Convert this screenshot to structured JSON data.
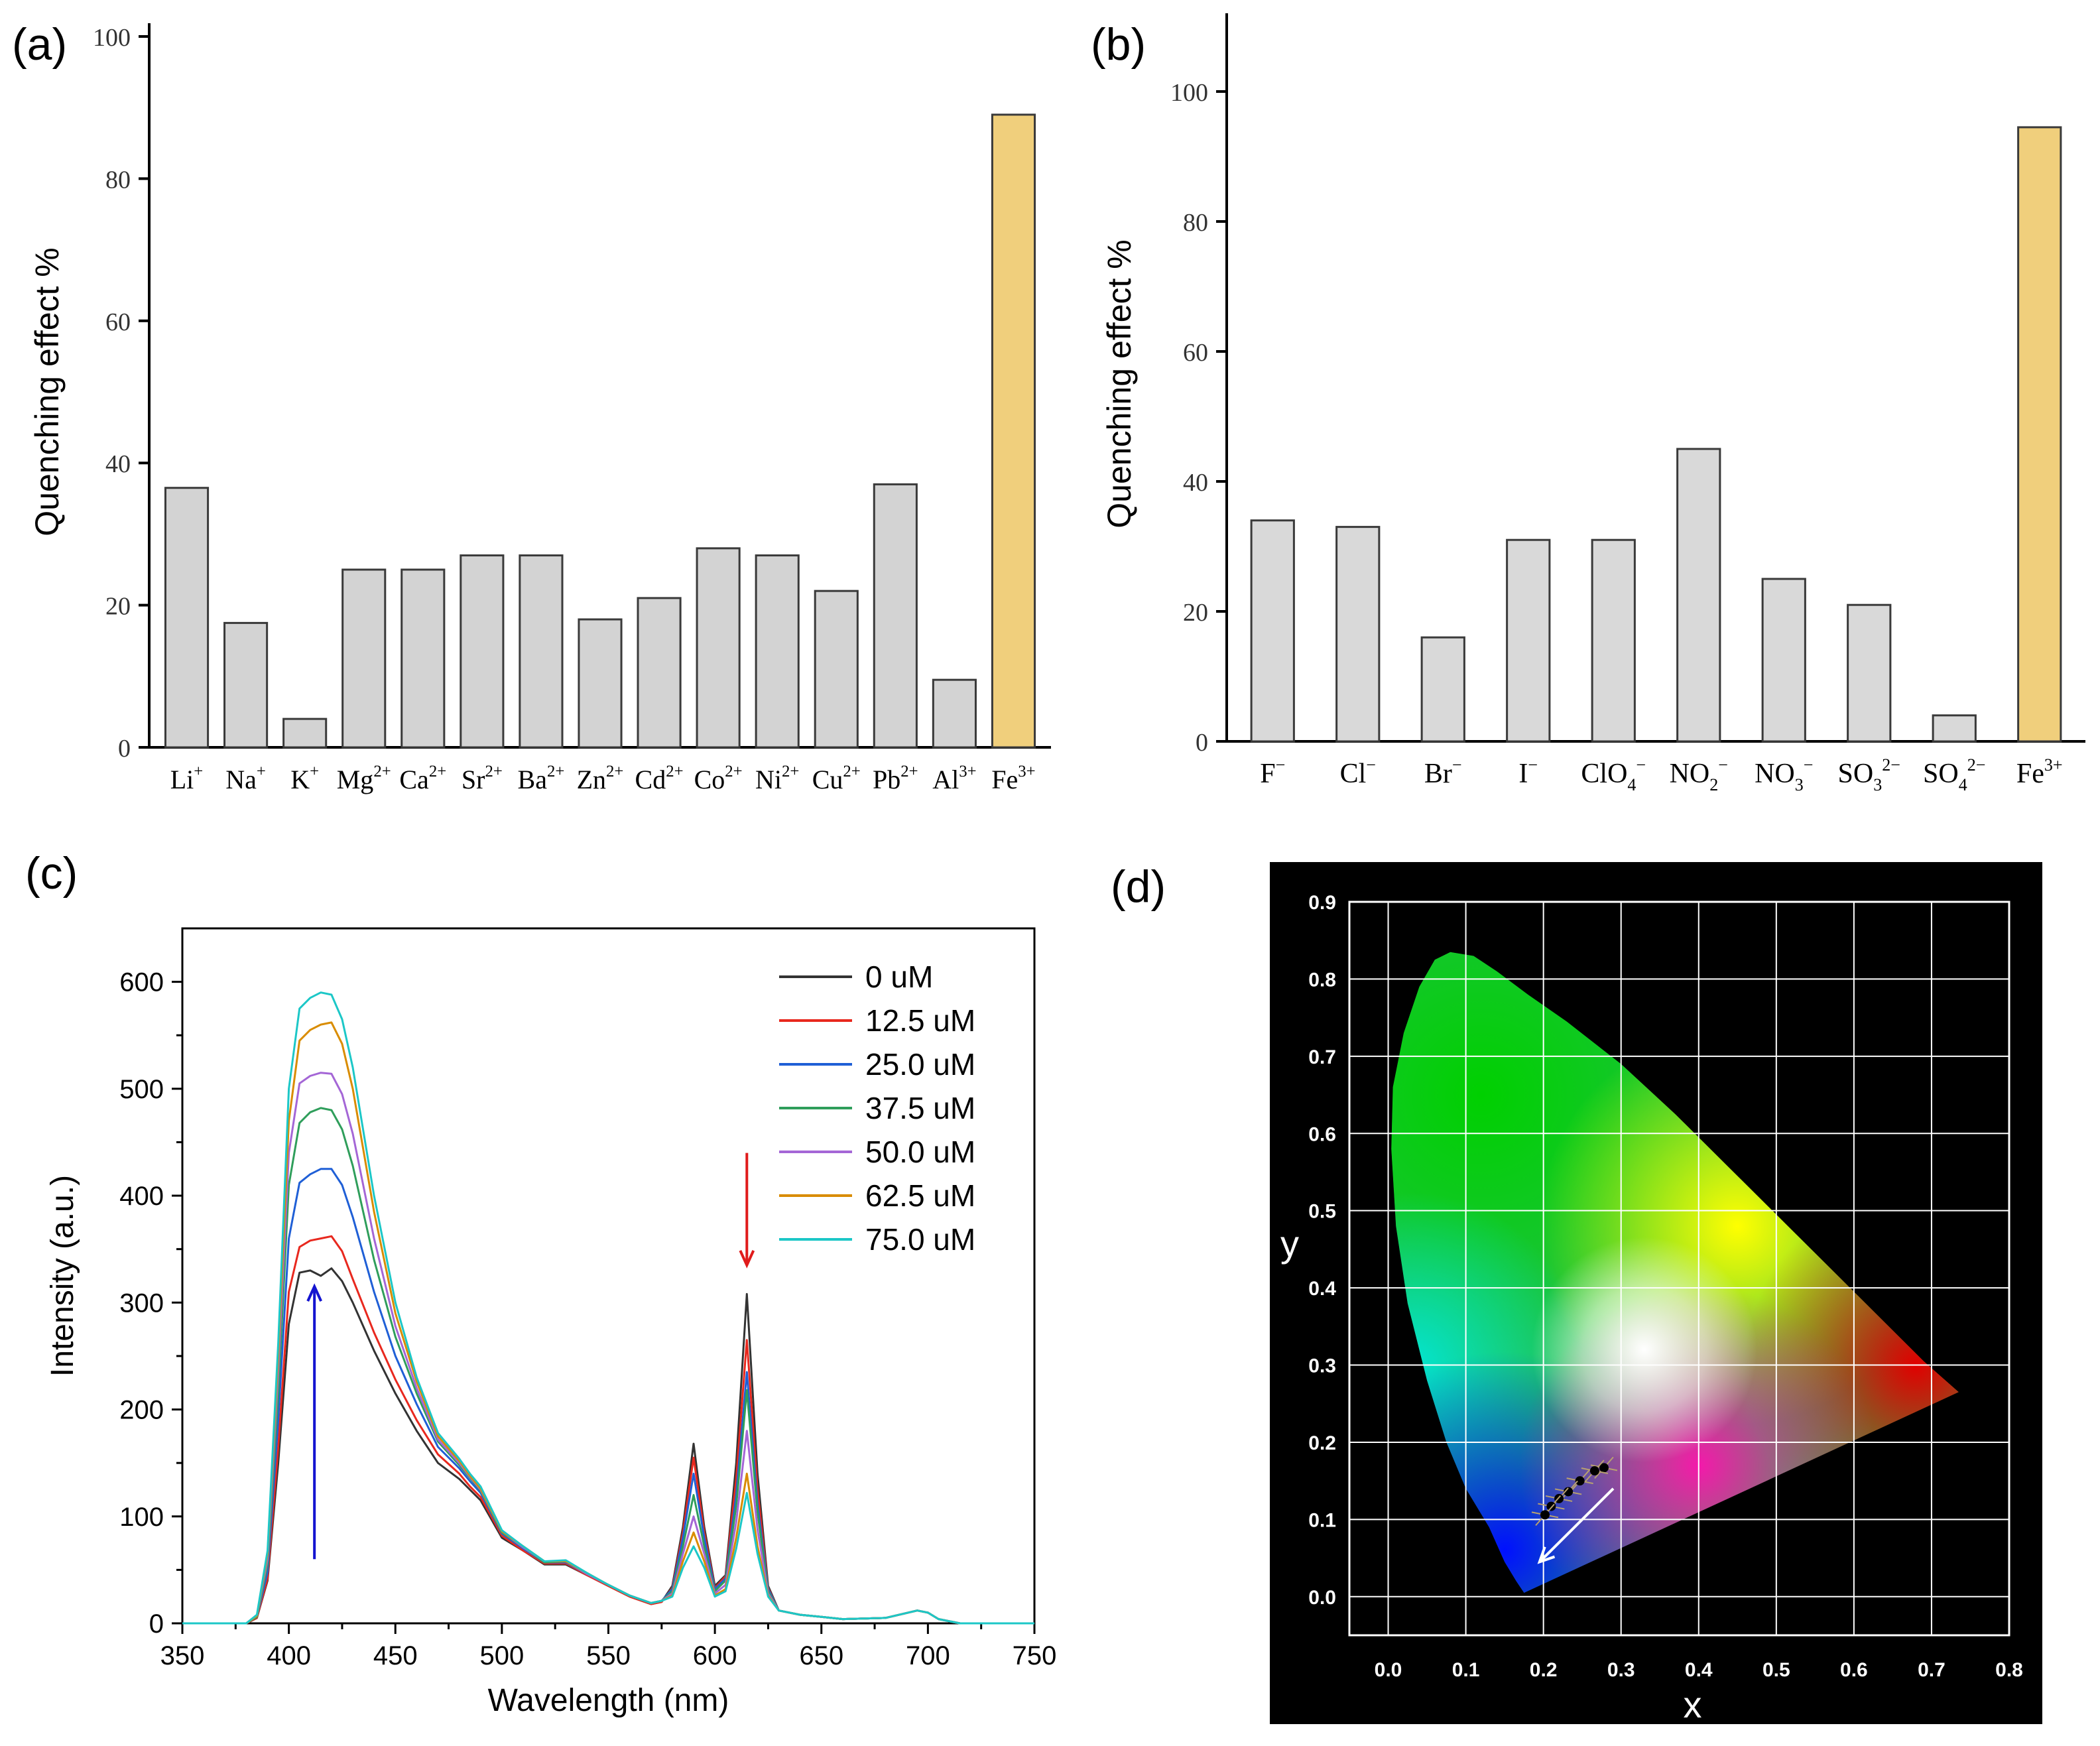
{
  "chart_data": [
    {
      "panel": "(a)",
      "type": "bar",
      "ylabel": "Quenching effect %",
      "xlabel": "",
      "ylim": [
        0,
        100
      ],
      "yticks": [
        0,
        20,
        40,
        60,
        80,
        100
      ],
      "categories": [
        {
          "base": "Li",
          "sup": "+"
        },
        {
          "base": "Na",
          "sup": "+"
        },
        {
          "base": "K",
          "sup": "+"
        },
        {
          "base": "Mg",
          "sup": "2+"
        },
        {
          "base": "Ca",
          "sup": "2+"
        },
        {
          "base": "Sr",
          "sup": "2+"
        },
        {
          "base": "Ba",
          "sup": "2+"
        },
        {
          "base": "Zn",
          "sup": "2+"
        },
        {
          "base": "Cd",
          "sup": "2+"
        },
        {
          "base": "Co",
          "sup": "2+"
        },
        {
          "base": "Ni",
          "sup": "2+"
        },
        {
          "base": "Cu",
          "sup": "2+"
        },
        {
          "base": "Pb",
          "sup": "2+"
        },
        {
          "base": "Al",
          "sup": "3+"
        },
        {
          "base": "Fe",
          "sup": "3+"
        }
      ],
      "values": [
        36.5,
        17.5,
        4,
        25,
        25,
        27,
        27,
        18,
        21,
        28,
        27,
        22,
        37,
        9.5,
        89
      ],
      "colors": {
        "default": "#d3d3d3",
        "highlight": "#f0cf7c",
        "stroke": "#3a3a3a"
      },
      "highlight_index": 14
    },
    {
      "panel": "(b)",
      "type": "bar",
      "ylabel": "Quenching effect %",
      "xlabel": "",
      "ylim": [
        0,
        110
      ],
      "yticks": [
        0,
        20,
        40,
        60,
        80,
        100
      ],
      "categories": [
        {
          "base": "F",
          "sup": "−"
        },
        {
          "base": "Cl",
          "sup": "−"
        },
        {
          "base": "Br",
          "sup": "−"
        },
        {
          "base": "I",
          "sup": "−"
        },
        {
          "base": "ClO",
          "sub": "4",
          "sup": "−"
        },
        {
          "base": "NO",
          "sub": "2",
          "sup": "−"
        },
        {
          "base": "NO",
          "sub": "3",
          "sup": "−"
        },
        {
          "base": "SO",
          "sub": "3",
          "sup": "2−"
        },
        {
          "base": "SO",
          "sub": "4",
          "sup": "2−"
        },
        {
          "base": "Fe",
          "sup": "3+"
        }
      ],
      "values": [
        34,
        33,
        16,
        31,
        31,
        45,
        25,
        21,
        4,
        94.5
      ],
      "colors": {
        "default": "#d9d9d9",
        "highlight": "#f0cf7c",
        "stroke": "#3a3a3a"
      },
      "highlight_index": 9
    },
    {
      "panel": "(c)",
      "type": "line",
      "xlabel": "Wavelength (nm)",
      "ylabel": "Intensity (a.u.)",
      "xlim": [
        350,
        750
      ],
      "ylim": [
        0,
        650
      ],
      "xticks": [
        350,
        400,
        450,
        500,
        550,
        600,
        650,
        700,
        750
      ],
      "yticks": [
        0,
        100,
        200,
        300,
        400,
        500,
        600
      ],
      "x": [
        350,
        380,
        385,
        390,
        395,
        400,
        405,
        410,
        415,
        420,
        425,
        430,
        440,
        450,
        460,
        470,
        480,
        485,
        490,
        500,
        510,
        520,
        530,
        540,
        550,
        560,
        570,
        575,
        580,
        585,
        590,
        595,
        600,
        605,
        610,
        615,
        620,
        625,
        630,
        640,
        650,
        660,
        680,
        695,
        700,
        705,
        715,
        750
      ],
      "series": [
        {
          "name": "0  uM",
          "color": "#333333",
          "values": [
            0,
            0,
            5,
            40,
            150,
            280,
            328,
            330,
            325,
            332,
            320,
            300,
            255,
            215,
            180,
            150,
            135,
            125,
            115,
            80,
            68,
            55,
            55,
            45,
            35,
            25,
            18,
            20,
            35,
            90,
            168,
            90,
            35,
            45,
            150,
            308,
            140,
            35,
            12,
            8,
            6,
            4,
            5,
            12,
            10,
            4,
            0,
            0
          ]
        },
        {
          "name": "12.5 uM",
          "color": "#e8281e",
          "values": [
            0,
            0,
            5,
            42,
            165,
            310,
            352,
            358,
            360,
            362,
            348,
            322,
            272,
            228,
            190,
            158,
            140,
            128,
            118,
            82,
            68,
            56,
            56,
            45,
            35,
            25,
            18,
            20,
            33,
            85,
            155,
            85,
            33,
            44,
            135,
            265,
            125,
            33,
            12,
            8,
            6,
            4,
            5,
            12,
            10,
            4,
            0,
            0
          ]
        },
        {
          "name": "25.0 uM",
          "color": "#1f5fd6",
          "values": [
            0,
            0,
            6,
            48,
            190,
            360,
            412,
            420,
            425,
            425,
            410,
            380,
            310,
            250,
            205,
            165,
            145,
            133,
            122,
            84,
            70,
            57,
            57,
            46,
            36,
            26,
            19,
            21,
            32,
            80,
            140,
            80,
            32,
            42,
            120,
            235,
            112,
            32,
            12,
            8,
            6,
            4,
            5,
            12,
            10,
            4,
            0,
            0
          ]
        },
        {
          "name": "37.5 uM",
          "color": "#2f9e5b",
          "values": [
            0,
            0,
            6,
            55,
            215,
            410,
            468,
            478,
            482,
            480,
            462,
            428,
            340,
            268,
            215,
            170,
            148,
            136,
            124,
            85,
            71,
            57,
            58,
            46,
            36,
            26,
            19,
            21,
            30,
            72,
            120,
            72,
            30,
            40,
            110,
            218,
            104,
            30,
            12,
            8,
            6,
            4,
            5,
            12,
            10,
            4,
            0,
            0
          ]
        },
        {
          "name": "50.0 uM",
          "color": "#a466d6",
          "values": [
            0,
            0,
            7,
            60,
            235,
            440,
            505,
            512,
            515,
            514,
            495,
            458,
            360,
            278,
            220,
            172,
            150,
            137,
            125,
            86,
            71,
            58,
            58,
            46,
            36,
            26,
            19,
            21,
            28,
            65,
            100,
            65,
            28,
            36,
            95,
            180,
            88,
            28,
            12,
            8,
            6,
            4,
            5,
            12,
            10,
            4,
            0,
            0
          ]
        },
        {
          "name": "62.5 uM",
          "color": "#d98c00",
          "values": [
            0,
            0,
            7,
            65,
            250,
            470,
            545,
            555,
            560,
            562,
            542,
            500,
            385,
            290,
            226,
            175,
            152,
            138,
            126,
            86,
            72,
            58,
            58,
            47,
            36,
            26,
            19,
            21,
            26,
            58,
            85,
            58,
            26,
            32,
            80,
            140,
            72,
            26,
            12,
            8,
            6,
            4,
            5,
            12,
            10,
            4,
            0,
            0
          ]
        },
        {
          "name": "75.0 uM",
          "color": "#1cc7c7",
          "values": [
            0,
            0,
            8,
            68,
            262,
            500,
            575,
            585,
            590,
            588,
            565,
            520,
            400,
            300,
            230,
            178,
            154,
            140,
            128,
            87,
            72,
            58,
            59,
            47,
            36,
            26,
            19,
            21,
            25,
            52,
            72,
            52,
            25,
            30,
            70,
            122,
            65,
            25,
            12,
            8,
            6,
            4,
            5,
            12,
            10,
            4,
            0,
            0
          ]
        }
      ],
      "annotations": [
        {
          "type": "arrow-up",
          "x": 412,
          "y_from": 60,
          "y_to": 315,
          "color": "#1414d0"
        },
        {
          "type": "arrow-down",
          "x": 615,
          "y_from": 440,
          "y_to": 335,
          "color": "#e01b1b"
        }
      ]
    },
    {
      "panel": "(d)",
      "type": "scatter",
      "subtype": "CIE 1931 chromaticity diagram",
      "xlabel": "x",
      "ylabel": "y",
      "xlim": [
        -0.05,
        0.8
      ],
      "ylim": [
        -0.05,
        0.9
      ],
      "xticks": [
        "0.0",
        "0.1",
        "0.2",
        "0.3",
        "0.4",
        "0.5",
        "0.6",
        "0.7",
        "0.8"
      ],
      "yticks": [
        "0.0",
        "0.1",
        "0.2",
        "0.3",
        "0.4",
        "0.5",
        "0.6",
        "0.7",
        "0.8",
        "0.9"
      ],
      "points": [
        {
          "x": 0.278,
          "y": 0.167
        },
        {
          "x": 0.266,
          "y": 0.163
        },
        {
          "x": 0.247,
          "y": 0.15
        },
        {
          "x": 0.232,
          "y": 0.136
        },
        {
          "x": 0.22,
          "y": 0.127
        },
        {
          "x": 0.21,
          "y": 0.117
        },
        {
          "x": 0.202,
          "y": 0.106
        }
      ],
      "arrow": {
        "from": [
          0.29,
          0.14
        ],
        "to": [
          0.195,
          0.045
        ],
        "color": "#ffffff"
      },
      "colors": {
        "background": "#000000",
        "grid": "#ffffff",
        "point": "#000000",
        "marker_cross": "#b8a070"
      }
    }
  ]
}
